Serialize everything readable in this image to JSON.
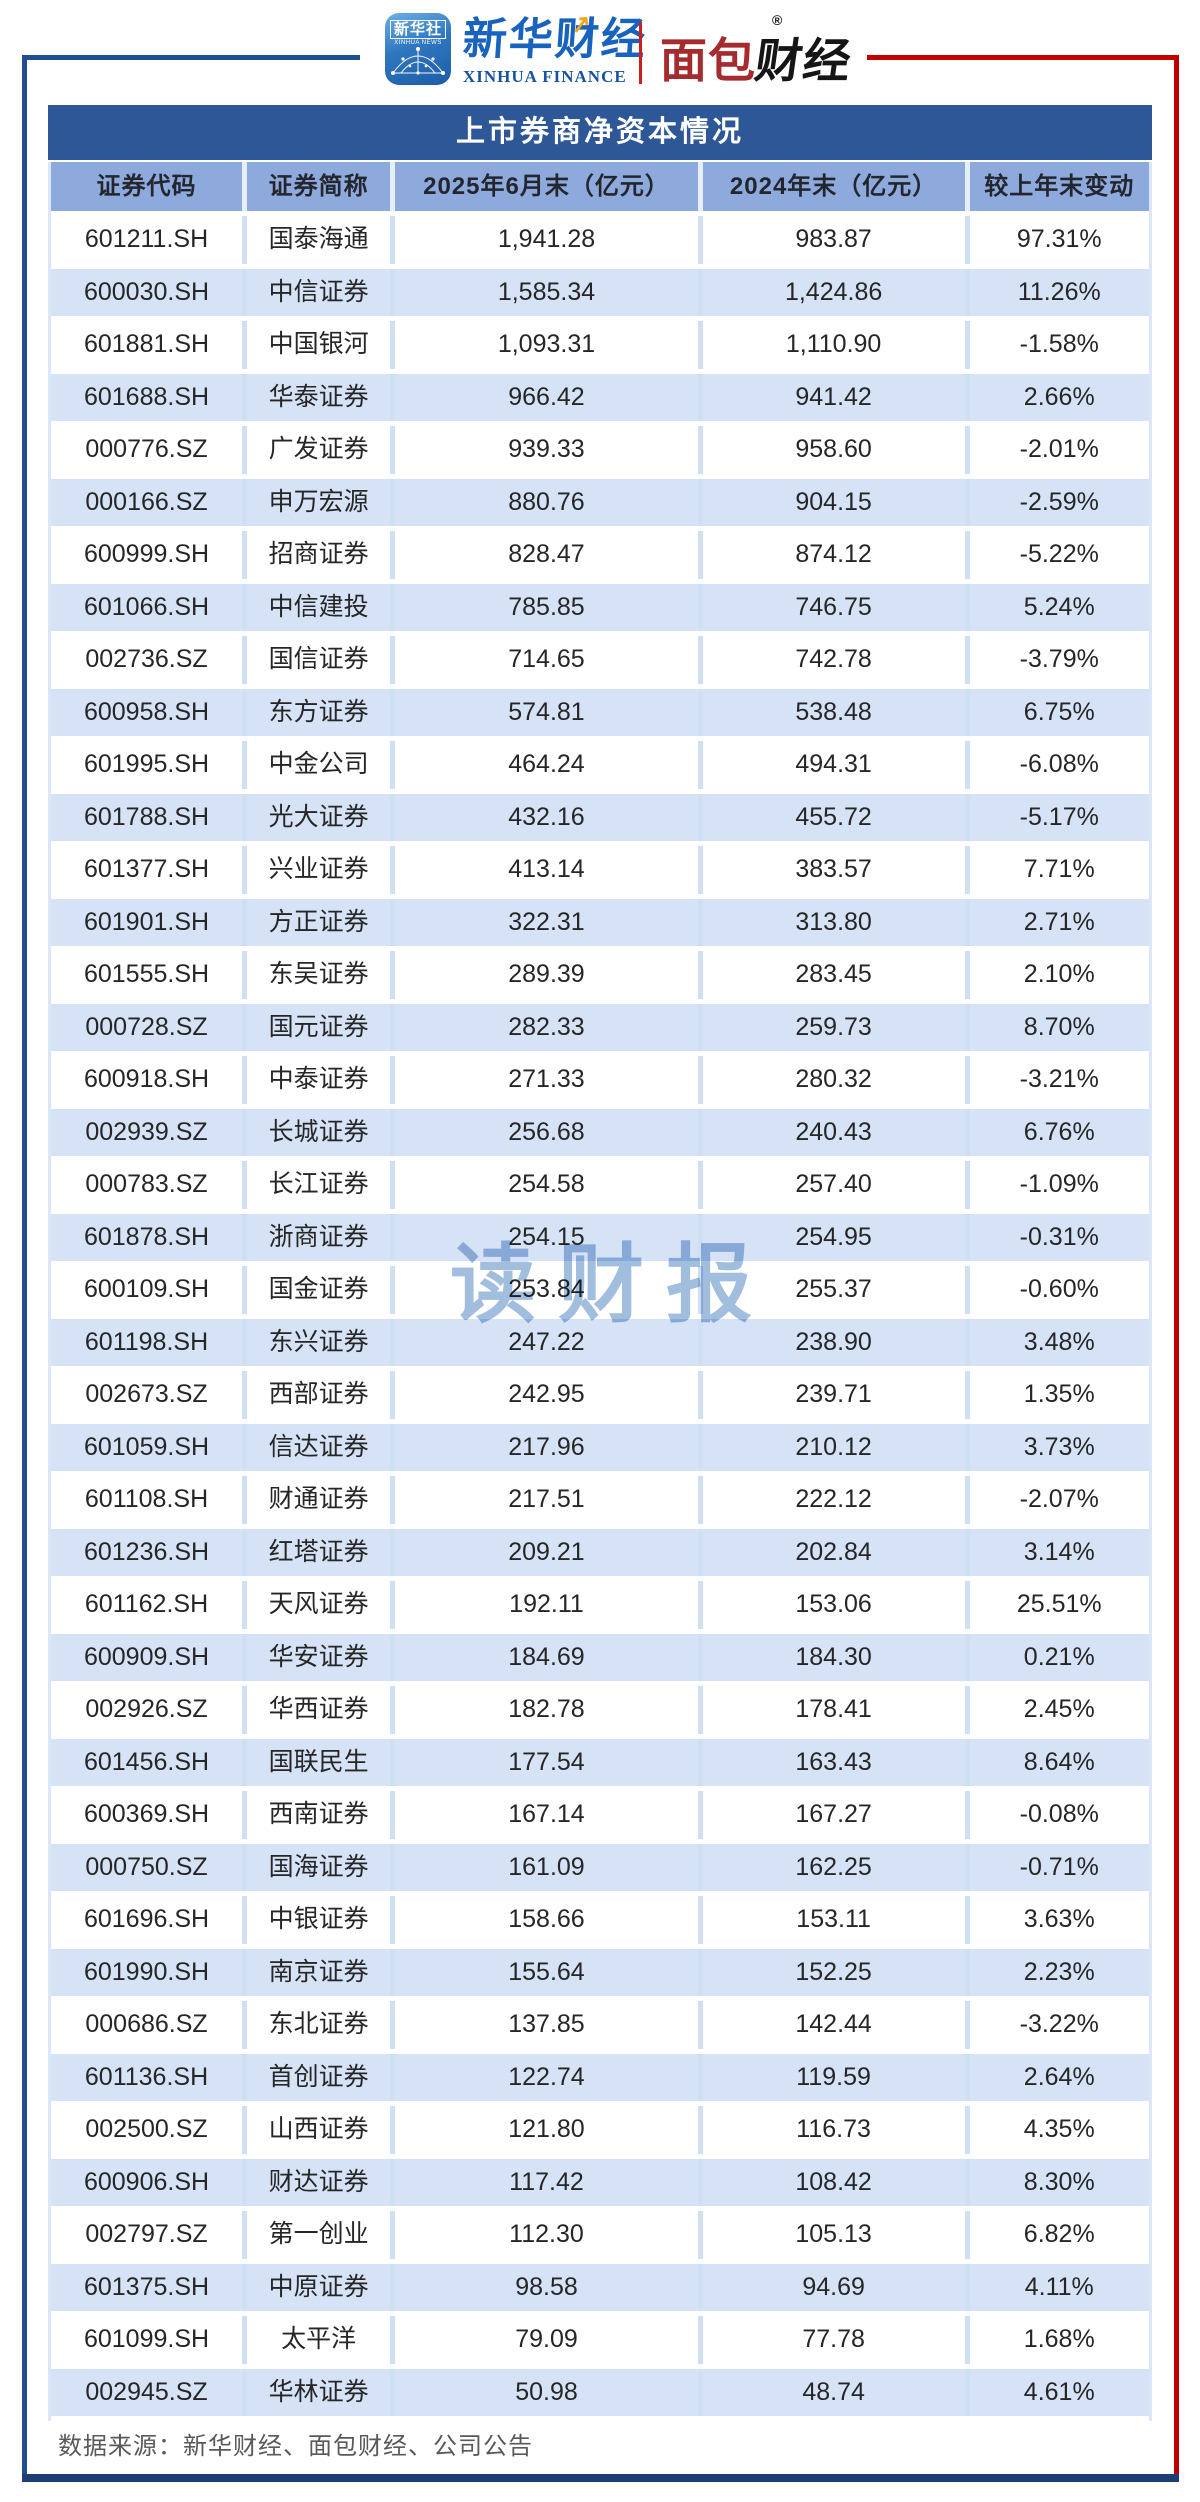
{
  "header": {
    "logo_xinhua_icon": {
      "cn": "新华社",
      "en": "XINHUA NEWS"
    },
    "logo_xinhua_finance": {
      "cn": "新华财经",
      "en": "XINHUA FINANCE",
      "arrow": "↗"
    },
    "logo_bread": {
      "red": "面包",
      "black": "财经",
      "reg": "®"
    }
  },
  "watermark": {
    "text": "读财报"
  },
  "footer": {
    "source": "数据来源：新华财经、面包财经、公司公告"
  },
  "colors": {
    "title_bar": "#2d5796",
    "header_row": "#8ea9db",
    "row_alt": "#d6e3f7",
    "frame_blue": "#1f4e91",
    "frame_red": "#c00000",
    "frame_bottom": "#1c3e74",
    "watermark": "#a2bede",
    "footer_text": "#595959"
  },
  "chart_data": {
    "type": "table",
    "title": "上市券商净资本情况",
    "columns": [
      "证券代码",
      "证券简称",
      "2025年6月末（亿元）",
      "2024年末（亿元）",
      "较上年末变动"
    ],
    "rows": [
      [
        "601211.SH",
        "国泰海通",
        "1,941.28",
        "983.87",
        "97.31%"
      ],
      [
        "600030.SH",
        "中信证券",
        "1,585.34",
        "1,424.86",
        "11.26%"
      ],
      [
        "601881.SH",
        "中国银河",
        "1,093.31",
        "1,110.90",
        "-1.58%"
      ],
      [
        "601688.SH",
        "华泰证券",
        "966.42",
        "941.42",
        "2.66%"
      ],
      [
        "000776.SZ",
        "广发证券",
        "939.33",
        "958.60",
        "-2.01%"
      ],
      [
        "000166.SZ",
        "申万宏源",
        "880.76",
        "904.15",
        "-2.59%"
      ],
      [
        "600999.SH",
        "招商证券",
        "828.47",
        "874.12",
        "-5.22%"
      ],
      [
        "601066.SH",
        "中信建投",
        "785.85",
        "746.75",
        "5.24%"
      ],
      [
        "002736.SZ",
        "国信证券",
        "714.65",
        "742.78",
        "-3.79%"
      ],
      [
        "600958.SH",
        "东方证券",
        "574.81",
        "538.48",
        "6.75%"
      ],
      [
        "601995.SH",
        "中金公司",
        "464.24",
        "494.31",
        "-6.08%"
      ],
      [
        "601788.SH",
        "光大证券",
        "432.16",
        "455.72",
        "-5.17%"
      ],
      [
        "601377.SH",
        "兴业证券",
        "413.14",
        "383.57",
        "7.71%"
      ],
      [
        "601901.SH",
        "方正证券",
        "322.31",
        "313.80",
        "2.71%"
      ],
      [
        "601555.SH",
        "东吴证券",
        "289.39",
        "283.45",
        "2.10%"
      ],
      [
        "000728.SZ",
        "国元证券",
        "282.33",
        "259.73",
        "8.70%"
      ],
      [
        "600918.SH",
        "中泰证券",
        "271.33",
        "280.32",
        "-3.21%"
      ],
      [
        "002939.SZ",
        "长城证券",
        "256.68",
        "240.43",
        "6.76%"
      ],
      [
        "000783.SZ",
        "长江证券",
        "254.58",
        "257.40",
        "-1.09%"
      ],
      [
        "601878.SH",
        "浙商证券",
        "254.15",
        "254.95",
        "-0.31%"
      ],
      [
        "600109.SH",
        "国金证券",
        "253.84",
        "255.37",
        "-0.60%"
      ],
      [
        "601198.SH",
        "东兴证券",
        "247.22",
        "238.90",
        "3.48%"
      ],
      [
        "002673.SZ",
        "西部证券",
        "242.95",
        "239.71",
        "1.35%"
      ],
      [
        "601059.SH",
        "信达证券",
        "217.96",
        "210.12",
        "3.73%"
      ],
      [
        "601108.SH",
        "财通证券",
        "217.51",
        "222.12",
        "-2.07%"
      ],
      [
        "601236.SH",
        "红塔证券",
        "209.21",
        "202.84",
        "3.14%"
      ],
      [
        "601162.SH",
        "天风证券",
        "192.11",
        "153.06",
        "25.51%"
      ],
      [
        "600909.SH",
        "华安证券",
        "184.69",
        "184.30",
        "0.21%"
      ],
      [
        "002926.SZ",
        "华西证券",
        "182.78",
        "178.41",
        "2.45%"
      ],
      [
        "601456.SH",
        "国联民生",
        "177.54",
        "163.43",
        "8.64%"
      ],
      [
        "600369.SH",
        "西南证券",
        "167.14",
        "167.27",
        "-0.08%"
      ],
      [
        "000750.SZ",
        "国海证券",
        "161.09",
        "162.25",
        "-0.71%"
      ],
      [
        "601696.SH",
        "中银证券",
        "158.66",
        "153.11",
        "3.63%"
      ],
      [
        "601990.SH",
        "南京证券",
        "155.64",
        "152.25",
        "2.23%"
      ],
      [
        "000686.SZ",
        "东北证券",
        "137.85",
        "142.44",
        "-3.22%"
      ],
      [
        "601136.SH",
        "首创证券",
        "122.74",
        "119.59",
        "2.64%"
      ],
      [
        "002500.SZ",
        "山西证券",
        "121.80",
        "116.73",
        "4.35%"
      ],
      [
        "600906.SH",
        "财达证券",
        "117.42",
        "108.42",
        "8.30%"
      ],
      [
        "002797.SZ",
        "第一创业",
        "112.30",
        "105.13",
        "6.82%"
      ],
      [
        "601375.SH",
        "中原证券",
        "98.58",
        "94.69",
        "4.11%"
      ],
      [
        "601099.SH",
        "太平洋",
        "79.09",
        "77.78",
        "1.68%"
      ],
      [
        "002945.SZ",
        "华林证券",
        "50.98",
        "48.74",
        "4.61%"
      ]
    ]
  }
}
